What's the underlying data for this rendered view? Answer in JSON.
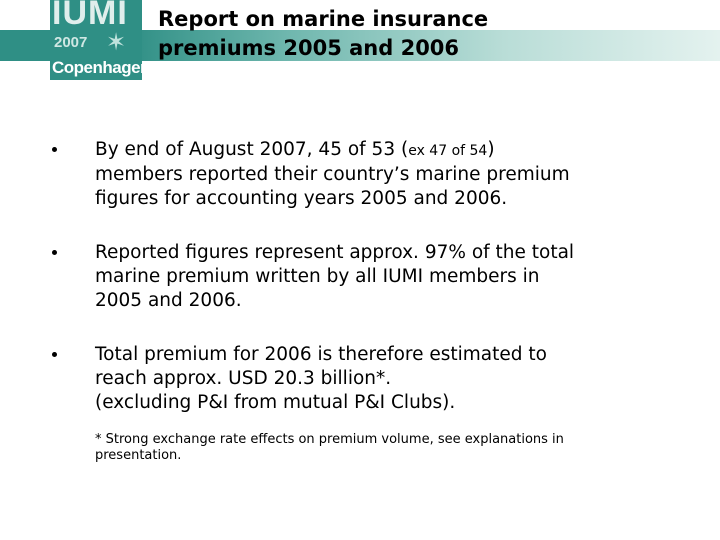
{
  "logo": {
    "name": "IUMI",
    "year": "2007",
    "city": "Copenhagen",
    "icon": "compass-star-icon"
  },
  "title": {
    "line1": "Report on marine insurance",
    "line2": "premiums 2005 and 2006"
  },
  "bullets": [
    {
      "line1_pre": "By end of August 2007, 45 of 53 (",
      "line1_small": "ex 47 of 54",
      "line1_post": ")",
      "line2": "members reported their country’s marine premium",
      "line3": "figures for accounting years 2005 and 2006."
    },
    {
      "line1": "Reported figures represent approx. 97% of the total",
      "line2": "marine premium written by all IUMI members in",
      "line3": "2005 and 2006."
    },
    {
      "line1": "Total premium for 2006 is therefore estimated to",
      "line2": "reach approx. USD 20.3 billion*.",
      "line3": "(excluding P&I from mutual P&I Clubs)."
    }
  ],
  "footnote": {
    "line1": "* Strong exchange rate effects on premium volume, see explanations in",
    "line2": "presentation."
  }
}
